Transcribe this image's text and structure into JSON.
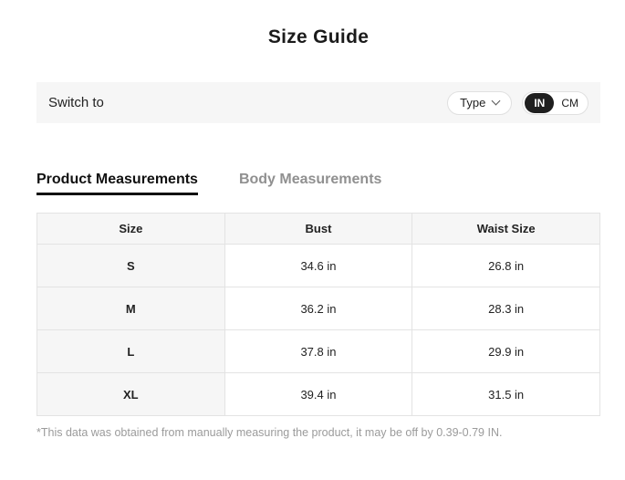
{
  "title": "Size Guide",
  "switch_bar": {
    "label": "Switch to",
    "type_dropdown": {
      "label": "Type"
    },
    "unit_toggle": {
      "options": [
        "IN",
        "CM"
      ],
      "selected": "IN"
    }
  },
  "tabs": [
    {
      "label": "Product Measurements",
      "active": true
    },
    {
      "label": "Body Measurements",
      "active": false
    }
  ],
  "table": {
    "headers": [
      "Size",
      "Bust",
      "Waist Size"
    ],
    "rows": [
      [
        "S",
        "34.6 in",
        "26.8 in"
      ],
      [
        "M",
        "36.2 in",
        "28.3 in"
      ],
      [
        "L",
        "37.8 in",
        "29.9 in"
      ],
      [
        "XL",
        "39.4 in",
        "31.5 in"
      ]
    ]
  },
  "footnote": "*This data was obtained from manually measuring the product, it may be off by 0.39-0.79 IN.",
  "icons": {
    "type_dropdown_icon": "chevron-down-icon"
  },
  "colors": {
    "selected_unit_bg": "#1f1f1f",
    "selected_unit_text": "#ffffff",
    "bar_bg": "#f6f6f6",
    "table_gray_bg": "#f6f6f6",
    "table_border": "#e3e3e3",
    "active_tab_text": "#111111",
    "inactive_tab_text": "#909090",
    "footnote_text": "#9b9b9b"
  }
}
